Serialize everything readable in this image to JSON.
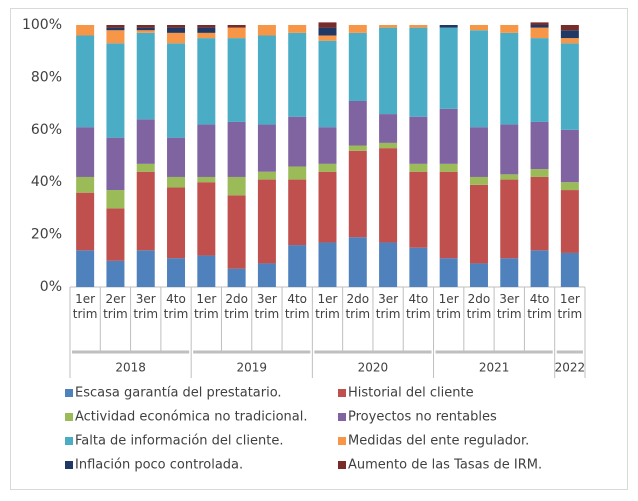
{
  "chart_data": {
    "type": "stacked_bar_100",
    "groups": [
      {
        "label": "2018",
        "categories": [
          "1er trim",
          "2er trim",
          "3er trim",
          "4to trim"
        ]
      },
      {
        "label": "2019",
        "categories": [
          "1er trim",
          "2do trim",
          "3er trim",
          "4to trim"
        ]
      },
      {
        "label": "2020",
        "categories": [
          "1er trim",
          "2do trim",
          "3er trim",
          "4to trim"
        ]
      },
      {
        "label": "2021",
        "categories": [
          "1er trim",
          "2do trim",
          "3er trim",
          "4to trim"
        ]
      },
      {
        "label": "2022",
        "categories": [
          "1er trim"
        ]
      }
    ],
    "series": [
      {
        "name": "Escasa garantía del prestatario.",
        "color": "#4f81bd",
        "values": [
          14,
          10,
          14,
          11,
          12,
          7,
          9,
          16,
          17,
          19,
          17,
          15,
          11,
          9,
          11,
          14,
          13
        ]
      },
      {
        "name": "Historial del cliente",
        "color": "#c0504d",
        "values": [
          22,
          20,
          30,
          27,
          28,
          28,
          32,
          25,
          27,
          33,
          36,
          29,
          33,
          30,
          30,
          28,
          24
        ]
      },
      {
        "name": "Actividad económica no tradicional.",
        "color": "#9bbb59",
        "values": [
          6,
          7,
          3,
          4,
          2,
          7,
          3,
          5,
          3,
          2,
          2,
          3,
          3,
          3,
          2,
          3,
          3
        ]
      },
      {
        "name": "Proyectos no rentables",
        "color": "#8064a2",
        "values": [
          19,
          20,
          17,
          15,
          20,
          21,
          18,
          19,
          14,
          17,
          11,
          18,
          21,
          19,
          19,
          18,
          20
        ]
      },
      {
        "name": "Falta de información del cliente.",
        "color": "#4bacc6",
        "values": [
          35,
          36,
          33,
          36,
          33,
          32,
          34,
          32,
          33,
          26,
          33,
          34,
          31,
          37,
          35,
          32,
          33
        ]
      },
      {
        "name": "Medidas del ente regulador.",
        "color": "#f79646",
        "values": [
          4,
          5,
          1,
          4,
          2,
          4,
          4,
          3,
          2,
          3,
          1,
          1,
          0,
          2,
          3,
          4,
          2
        ]
      },
      {
        "name": "Inflación poco controlada.",
        "color": "#1f3864",
        "values": [
          0,
          1,
          1,
          2,
          2,
          0,
          0,
          0,
          3,
          0,
          0,
          0,
          1,
          0,
          0,
          1,
          3
        ]
      },
      {
        "name": "Aumento de las Tasas de IRM.",
        "color": "#772c2a",
        "values": [
          0,
          1,
          1,
          1,
          1,
          1,
          0,
          0,
          2,
          0,
          0,
          0,
          0,
          0,
          0,
          1,
          2
        ]
      }
    ],
    "ylim": [
      0,
      100
    ],
    "yticks": [
      {
        "value": 0,
        "label": "0%"
      },
      {
        "value": 20,
        "label": "20%"
      },
      {
        "value": 40,
        "label": "40%"
      },
      {
        "value": 60,
        "label": "60%"
      },
      {
        "value": 80,
        "label": "80%"
      },
      {
        "value": 100,
        "label": "100%"
      }
    ],
    "grid": false,
    "legend": "bottom"
  }
}
